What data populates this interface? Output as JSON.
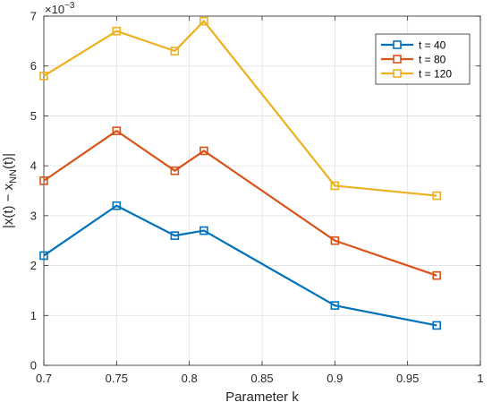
{
  "chart_data": {
    "type": "line",
    "x": [
      0.7,
      0.75,
      0.79,
      0.81,
      0.9,
      0.97
    ],
    "series": [
      {
        "name": "t = 40",
        "color": "#0072BD",
        "values": [
          2.2,
          3.2,
          2.6,
          2.7,
          1.2,
          0.8
        ]
      },
      {
        "name": "t = 80",
        "color": "#D95319",
        "values": [
          3.7,
          4.7,
          3.9,
          4.3,
          2.5,
          1.8
        ]
      },
      {
        "name": "t = 120",
        "color": "#EDB120",
        "values": [
          5.8,
          6.7,
          6.3,
          6.9,
          3.6,
          3.4
        ]
      }
    ],
    "xlabel": "Parameter k",
    "ylabel_parts": [
      "|x(t) − x",
      "NN",
      "(t)|"
    ],
    "y_multiplier": {
      "base": "×10",
      "exponent": "−3"
    },
    "xlim": [
      0.7,
      1.0
    ],
    "ylim": [
      0,
      7
    ],
    "xticks": [
      0.7,
      0.75,
      0.8,
      0.85,
      0.9,
      0.95,
      1
    ],
    "xtick_labels": [
      "0.7",
      "0.75",
      "0.8",
      "0.85",
      "0.9",
      "0.95",
      "1"
    ],
    "yticks": [
      0,
      1,
      2,
      3,
      4,
      5,
      6,
      7
    ],
    "ytick_labels": [
      "0",
      "1",
      "2",
      "3",
      "4",
      "5",
      "6",
      "7"
    ],
    "grid": true,
    "legend_position": "top-right",
    "marker": "square"
  }
}
